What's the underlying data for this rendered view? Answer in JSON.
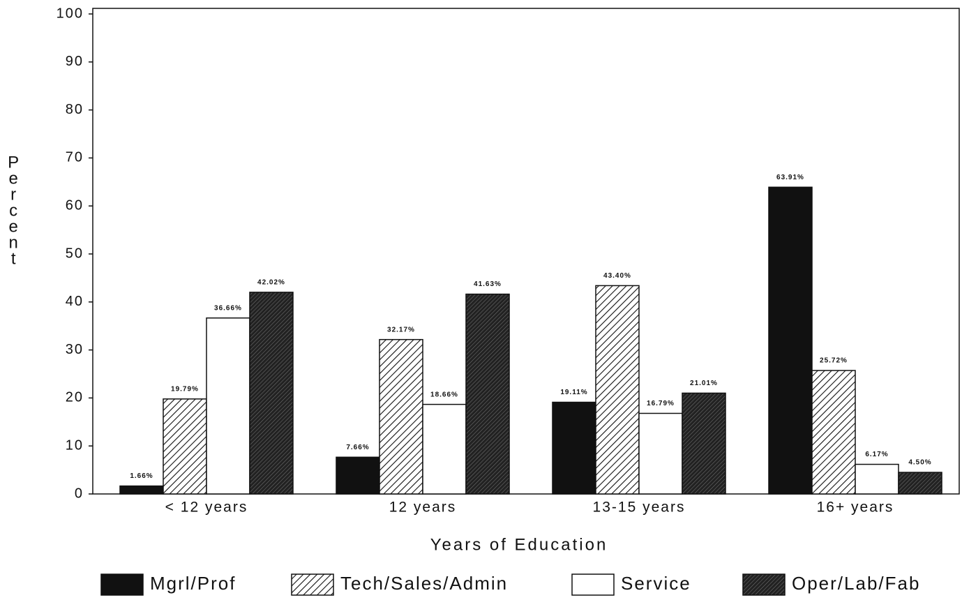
{
  "chart_data": {
    "type": "bar",
    "x_label": "Years of Education",
    "y_label": "Percent",
    "categories": [
      "< 12 years",
      "12 years",
      "13-15 years",
      "16+ years"
    ],
    "series": [
      {
        "name": "Mgrl/Prof",
        "color": "#111111",
        "pattern": "solid",
        "values": [
          1.66,
          7.66,
          19.11,
          63.91
        ],
        "value_labels": [
          "1.66%",
          "7.66%",
          "19.11%",
          "63.91%"
        ]
      },
      {
        "name": "Tech/Sales/Admin",
        "color": "#111111",
        "pattern": "diagonal",
        "values": [
          19.79,
          32.17,
          43.4,
          25.72
        ],
        "value_labels": [
          "19.79%",
          "32.17%",
          "43.40%",
          "25.72%"
        ]
      },
      {
        "name": "Service",
        "color": "#111111",
        "pattern": "none",
        "values": [
          36.66,
          18.66,
          16.79,
          6.17
        ],
        "value_labels": [
          "36.66%",
          "18.66%",
          "16.79%",
          "6.17%"
        ]
      },
      {
        "name": "Oper/Lab/Fab",
        "color": "#111111",
        "pattern": "dense",
        "values": [
          42.02,
          41.63,
          21.01,
          4.5
        ],
        "value_labels": [
          "42.02%",
          "41.63%",
          "21.01%",
          "4.50%"
        ]
      }
    ],
    "ylim": [
      0,
      100
    ],
    "yticks": [
      0,
      10,
      20,
      30,
      40,
      50,
      60,
      70,
      80,
      90,
      100
    ],
    "grid": false
  }
}
